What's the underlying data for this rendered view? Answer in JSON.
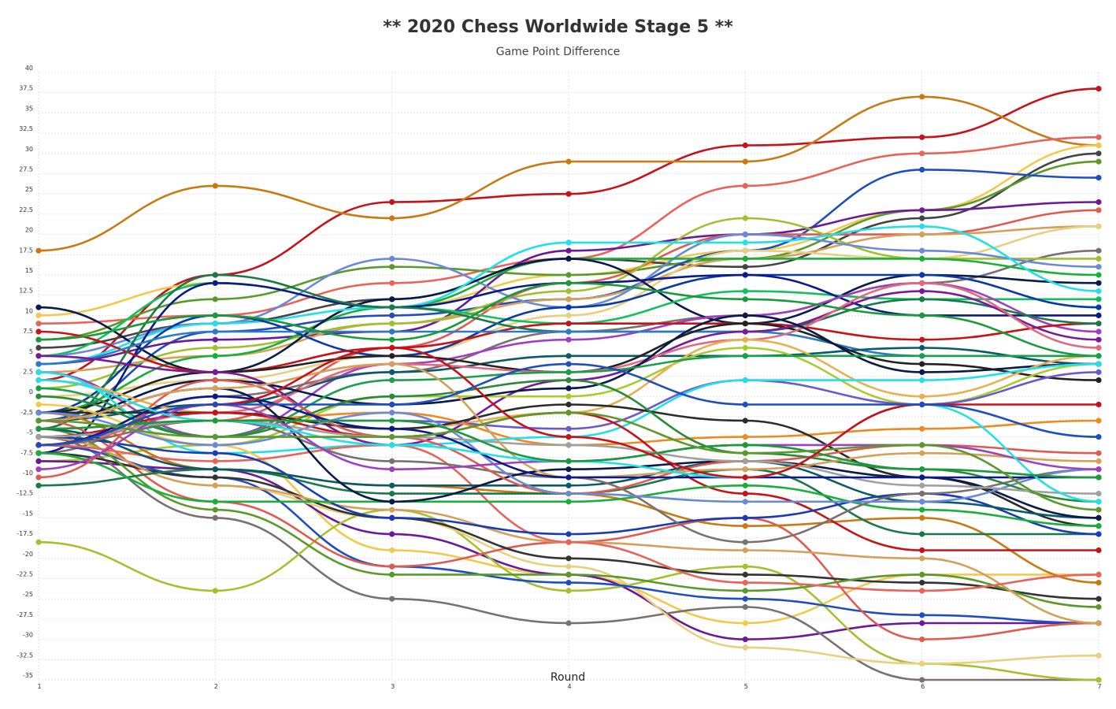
{
  "chart_data": {
    "type": "line",
    "title": "** 2020 Chess Worldwide Stage 5 **",
    "subtitle": "Game Point Difference",
    "xlabel": "Round",
    "ylabel": "",
    "x": [
      1,
      2,
      3,
      4,
      5,
      6,
      7
    ],
    "x_tick_labels": [
      "1",
      "2",
      "3",
      "4",
      "5",
      "6",
      "7"
    ],
    "ylim": [
      -35,
      40
    ],
    "y_ticks": [
      40,
      37.5,
      35,
      32.5,
      30,
      27.5,
      25,
      22.5,
      20,
      17.5,
      15,
      12.5,
      10,
      7.5,
      5,
      2.5,
      0,
      -2.5,
      -5,
      -7.5,
      -10,
      -12.5,
      -15,
      -17.5,
      -20,
      -22.5,
      -25,
      -27.5,
      -30,
      -32.5,
      -35
    ],
    "y_tick_labels": [
      "40",
      "37.5",
      "35",
      "32.5",
      "30",
      "27.5",
      "25",
      "22.5",
      "20",
      "17.5",
      "15",
      "12.5",
      "10",
      "7.5",
      "5",
      "2.5",
      "0",
      "-2.5",
      "-5",
      "-7.5",
      "-10",
      "-12.5",
      "-15",
      "-17.5",
      "-20",
      "-22.5",
      "-25",
      "-27.5",
      "-30",
      "-32.5",
      "-35"
    ],
    "grid": true,
    "legend": "none",
    "series": [
      {
        "color": "#c8121a",
        "values": [
          2,
          15,
          24,
          25,
          31,
          32,
          38
        ]
      },
      {
        "color": "#c97a12",
        "values": [
          18,
          26,
          22,
          29,
          29,
          37,
          31
        ]
      },
      {
        "color": "#e8635a",
        "values": [
          9,
          10,
          14,
          17,
          26,
          30,
          32
        ]
      },
      {
        "color": "#f2c94c",
        "values": [
          10,
          14,
          11,
          15,
          18,
          23,
          31
        ]
      },
      {
        "color": "#444444",
        "values": [
          6,
          9,
          12,
          17,
          16,
          22,
          30
        ]
      },
      {
        "color": "#5a9a2a",
        "values": [
          7,
          12,
          16,
          15,
          17,
          23,
          29
        ]
      },
      {
        "color": "#1f4fbf",
        "values": [
          -3,
          8,
          10,
          12,
          18,
          28,
          27
        ]
      },
      {
        "color": "#6a1a99",
        "values": [
          4,
          7,
          8,
          18,
          20,
          23,
          24
        ]
      },
      {
        "color": "#e05a50",
        "values": [
          -5,
          -3,
          6,
          14,
          20,
          20,
          23
        ]
      },
      {
        "color": "#d4a05a",
        "values": [
          3,
          5,
          9,
          12,
          17,
          20,
          21
        ]
      },
      {
        "color": "#e8d080",
        "values": [
          0,
          2,
          5,
          10,
          18,
          17,
          21
        ]
      },
      {
        "color": "#7a7070",
        "values": [
          -7,
          0,
          3,
          8,
          10,
          14,
          18
        ]
      },
      {
        "color": "#a0c030",
        "values": [
          1,
          6,
          9,
          13,
          22,
          17,
          17
        ]
      },
      {
        "color": "#6a8ad8",
        "values": [
          5,
          9,
          17,
          11,
          20,
          18,
          16
        ]
      },
      {
        "color": "#1aaf3a",
        "values": [
          -2,
          5,
          11,
          17,
          17,
          17,
          15
        ]
      },
      {
        "color": "#0a1a4a",
        "values": [
          11,
          3,
          12,
          17,
          9,
          15,
          14
        ]
      },
      {
        "color": "#22e0e8",
        "values": [
          4,
          9,
          11,
          19,
          19,
          21,
          13
        ]
      },
      {
        "color": "#13c060",
        "values": [
          5,
          14,
          11,
          9,
          13,
          12,
          12
        ]
      },
      {
        "color": "#0a3aa8",
        "values": [
          -2,
          10,
          5,
          11,
          15,
          15,
          11
        ]
      },
      {
        "color": "#0a1a8a",
        "values": [
          -7,
          14,
          11,
          14,
          15,
          10,
          10
        ]
      },
      {
        "color": "#a040c0",
        "values": [
          3,
          -5,
          4,
          7,
          10,
          14,
          8
        ]
      },
      {
        "color": "#c8121a",
        "values": [
          8,
          3,
          6,
          9,
          9,
          7,
          9
        ]
      },
      {
        "color": "#19794a",
        "values": [
          -4,
          15,
          11,
          8,
          8,
          12,
          9
        ]
      },
      {
        "color": "#2a7ac8",
        "values": [
          4,
          8,
          8,
          8,
          8,
          5,
          5
        ]
      },
      {
        "color": "#0a5a6a",
        "values": [
          -3,
          -1,
          3,
          5,
          5,
          6,
          4
        ]
      },
      {
        "color": "#222222",
        "values": [
          -2,
          3,
          5,
          3,
          9,
          4,
          2
        ]
      },
      {
        "color": "#7a1a9a",
        "values": [
          5,
          3,
          -6,
          2,
          8,
          13,
          7
        ]
      },
      {
        "color": "#e06a80",
        "values": [
          -6,
          -2,
          4,
          3,
          7,
          14,
          6
        ]
      },
      {
        "color": "#1a9a3a",
        "values": [
          7,
          10,
          7,
          14,
          12,
          10,
          5
        ]
      },
      {
        "color": "#a8cc30",
        "values": [
          -8,
          -6,
          0,
          0,
          6,
          -1,
          4
        ]
      },
      {
        "color": "#0a1a4a",
        "values": [
          -3,
          2,
          -1,
          1,
          10,
          3,
          4
        ]
      },
      {
        "color": "#e8b050",
        "values": [
          2,
          -2,
          -4,
          -2,
          7,
          0,
          5
        ]
      },
      {
        "color": "#6a5acd",
        "values": [
          -5,
          -3,
          -3,
          -4,
          2,
          -1,
          3
        ]
      },
      {
        "color": "#19a04a",
        "values": [
          1,
          -5,
          2,
          3,
          5,
          5,
          5
        ]
      },
      {
        "color": "#ee8a20",
        "values": [
          -4,
          -3,
          -2,
          -6,
          -5,
          -4,
          -3
        ]
      },
      {
        "color": "#22e0e8",
        "values": [
          3,
          -7,
          -6,
          -5,
          2,
          2,
          4
        ]
      },
      {
        "color": "#2b2b2b",
        "values": [
          -2,
          -2,
          -4,
          -1,
          -3,
          -10,
          -16
        ]
      },
      {
        "color": "#f2c94c",
        "values": [
          -1,
          -6,
          -19,
          -22,
          -28,
          -22,
          -22
        ]
      },
      {
        "color": "#6a1a99",
        "values": [
          -8,
          -9,
          -17,
          -22,
          -30,
          -28,
          -28
        ]
      },
      {
        "color": "#7a7070",
        "values": [
          -5,
          -15,
          -25,
          -28,
          -26,
          -35,
          -35
        ]
      },
      {
        "color": "#a8c030",
        "values": [
          -18,
          -24,
          -14,
          -24,
          -21,
          -33,
          -35
        ]
      },
      {
        "color": "#e8d080",
        "values": [
          -5,
          -11,
          -15,
          -21,
          -31,
          -33,
          -32
        ]
      },
      {
        "color": "#1f4fbf",
        "values": [
          -6,
          -10,
          -21,
          -23,
          -25,
          -27,
          -28
        ]
      },
      {
        "color": "#e05a50",
        "values": [
          -3,
          -13,
          -21,
          -18,
          -15,
          -30,
          -28
        ]
      },
      {
        "color": "#333333",
        "values": [
          -7,
          -10,
          -15,
          -20,
          -22,
          -23,
          -25
        ]
      },
      {
        "color": "#5a9a2a",
        "values": [
          -4,
          -14,
          -22,
          -22,
          -24,
          -22,
          -26
        ]
      },
      {
        "color": "#d4a05a",
        "values": [
          -5,
          -11,
          -14,
          -18,
          -19,
          -20,
          -28
        ]
      },
      {
        "color": "#c97a12",
        "values": [
          -2,
          -9,
          -11,
          -12,
          -16,
          -15,
          -23
        ]
      },
      {
        "color": "#e8635a",
        "values": [
          -6,
          -8,
          -6,
          -18,
          -23,
          -24,
          -22
        ]
      },
      {
        "color": "#c8121a",
        "values": [
          -5,
          -2,
          -5,
          -2,
          -12,
          -19,
          -19
        ]
      },
      {
        "color": "#19794a",
        "values": [
          -11,
          -9,
          -12,
          -12,
          -9,
          -17,
          -17
        ]
      },
      {
        "color": "#1a3ab8",
        "values": [
          -5,
          -7,
          -15,
          -17,
          -15,
          -12,
          -17
        ]
      },
      {
        "color": "#0a5a6a",
        "values": [
          -4,
          -9,
          -11,
          -11,
          -8,
          -13,
          -15
        ]
      },
      {
        "color": "#1aaf3a",
        "values": [
          -7,
          -13,
          -13,
          -13,
          -11,
          -14,
          -16
        ]
      },
      {
        "color": "#7a7070",
        "values": [
          -6,
          -3,
          -8,
          -10,
          -18,
          -12,
          -9
        ]
      },
      {
        "color": "#0a1a4a",
        "values": [
          -3,
          1,
          -13,
          -9,
          -8,
          -10,
          -15
        ]
      },
      {
        "color": "#e05a50",
        "values": [
          -10,
          2,
          -5,
          -12,
          -8,
          -6,
          -7
        ]
      },
      {
        "color": "#6a8ad8",
        "values": [
          -2,
          -6,
          -2,
          -12,
          -13,
          -13,
          -9
        ]
      },
      {
        "color": "#2b8a3a",
        "values": [
          0,
          -5,
          0,
          2,
          -7,
          -9,
          -13
        ]
      },
      {
        "color": "#a0a0a0",
        "values": [
          -5,
          -3,
          -5,
          -6,
          -8,
          -11,
          -12
        ]
      },
      {
        "color": "#d4a05a",
        "values": [
          -3,
          1,
          4,
          -10,
          -9,
          -7,
          -8
        ]
      },
      {
        "color": "#a040c0",
        "values": [
          -9,
          -1,
          -9,
          -8,
          -6,
          -6,
          -9
        ]
      },
      {
        "color": "#0a1a8a",
        "values": [
          -6,
          0,
          -4,
          -10,
          -10,
          -10,
          -10
        ]
      },
      {
        "color": "#22e0e8",
        "values": [
          2,
          -3,
          -6,
          -8,
          -10,
          -1,
          -13
        ]
      },
      {
        "color": "#1a9a3a",
        "values": [
          -4,
          -3,
          -3,
          -8,
          -6,
          -9,
          -10
        ]
      },
      {
        "color": "#5a9a2a",
        "values": [
          -3,
          -5,
          -5,
          -2,
          -7,
          -6,
          -14
        ]
      },
      {
        "color": "#c8121a",
        "values": [
          -6,
          -1,
          6,
          -5,
          -10,
          -1,
          -1
        ]
      },
      {
        "color": "#1f4fbf",
        "values": [
          -6,
          -1,
          -1,
          4,
          -1,
          -1,
          -5
        ]
      }
    ]
  }
}
